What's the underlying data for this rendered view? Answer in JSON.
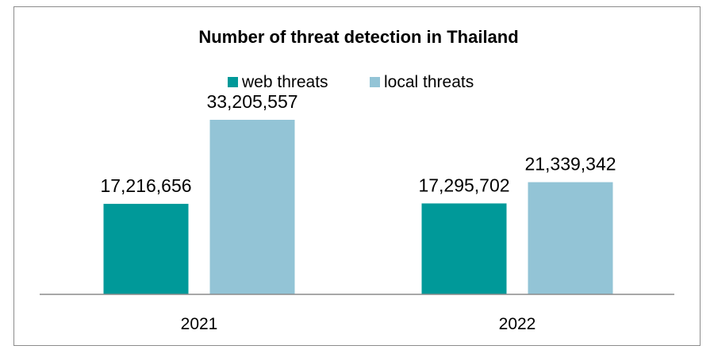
{
  "chart_data": {
    "type": "bar",
    "title": "Number of threat detection in Thailand",
    "categories": [
      "2021",
      "2022"
    ],
    "series": [
      {
        "name": "web threats",
        "color": "#009999",
        "values": [
          17216656,
          17295702
        ],
        "labels": [
          "17,216,656",
          "17,295,702"
        ]
      },
      {
        "name": "local threats",
        "color": "#93c4d6",
        "values": [
          33205557,
          21339342
        ],
        "labels": [
          "33,205,557",
          "21,339,342"
        ]
      }
    ],
    "legend_position": "top",
    "grid": false,
    "ylim": [
      0,
      40000000
    ],
    "axis_color": "#8c8c8c"
  }
}
